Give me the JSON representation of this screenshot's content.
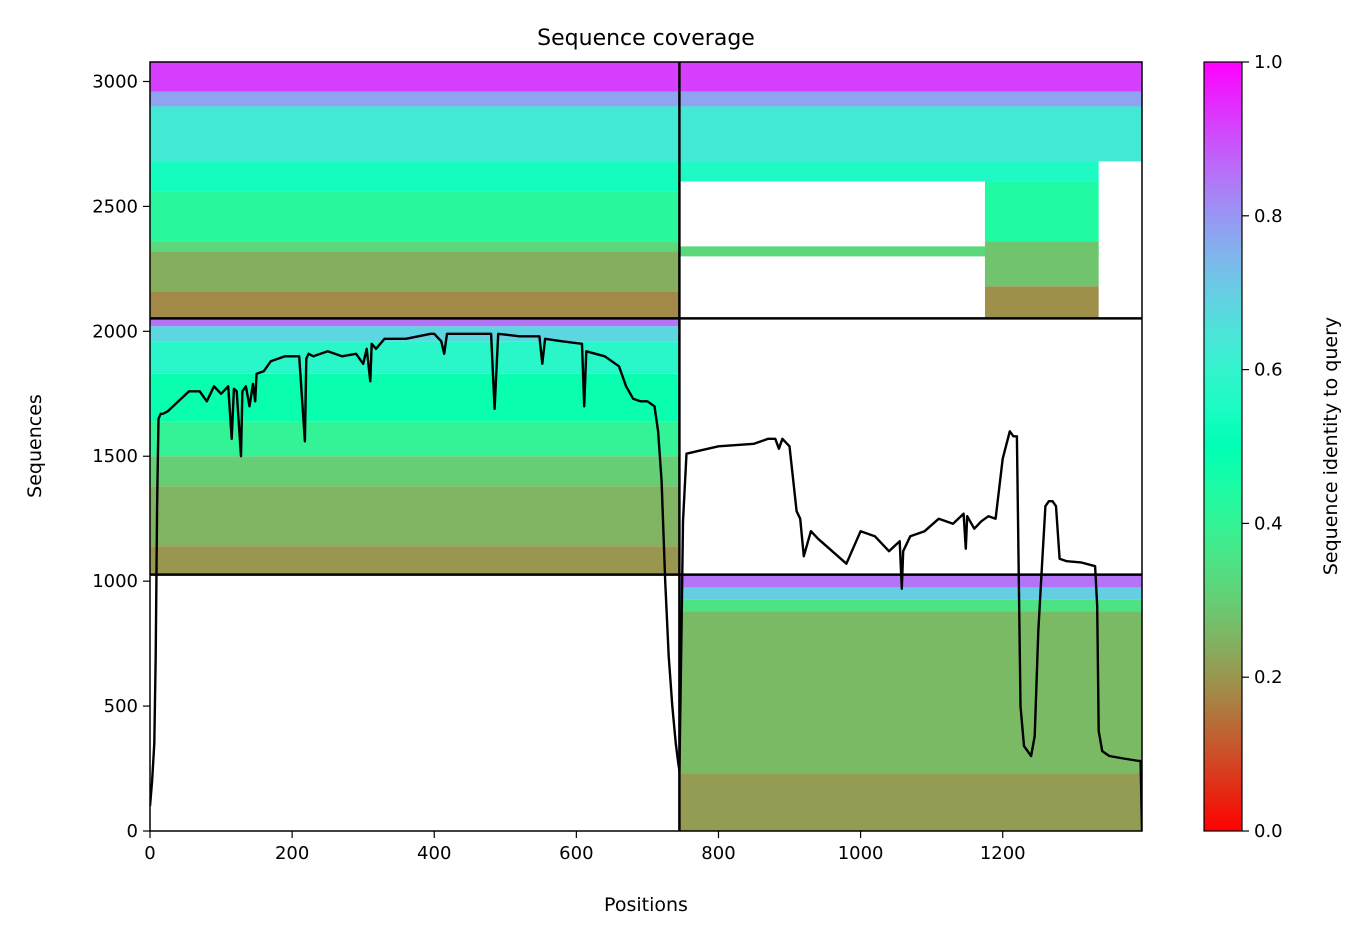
{
  "chart_data": {
    "type": "heatmap",
    "title": "Sequence coverage",
    "xlabel": "Positions",
    "ylabel": "Sequences",
    "xlim": [
      0,
      1396
    ],
    "ylim": [
      0,
      3078
    ],
    "x_ticks": [
      0,
      200,
      400,
      600,
      800,
      1000,
      1200
    ],
    "y_ticks": [
      0,
      500,
      1000,
      1500,
      2000,
      2500,
      3000
    ],
    "colorbar": {
      "label": "Sequence identity to query",
      "range": [
        0.0,
        1.0
      ],
      "ticks": [
        "0.0",
        "0.2",
        "0.4",
        "0.6",
        "0.8",
        "1.0"
      ],
      "colormap": "rainbow_r"
    },
    "chains": [
      {
        "x_range": [
          0,
          745
        ],
        "y_range": [
          1026,
          2052
        ]
      },
      {
        "x_range": [
          745,
          1396
        ],
        "y_range": [
          0,
          1026
        ]
      },
      {
        "x_range": [
          0,
          1396
        ],
        "y_range": [
          2052,
          3078
        ]
      }
    ],
    "block_bands": [
      {
        "x_range": [
          0,
          745
        ],
        "y_range": [
          1026,
          2052
        ],
        "bands": [
          {
            "y0": 2052,
            "y1": 2020,
            "identity": 0.85
          },
          {
            "y0": 2020,
            "y1": 1960,
            "identity": 0.68
          },
          {
            "y0": 1960,
            "y1": 1830,
            "identity": 0.58
          },
          {
            "y0": 1830,
            "y1": 1640,
            "identity": 0.48
          },
          {
            "y0": 1640,
            "y1": 1500,
            "identity": 0.4
          },
          {
            "y0": 1500,
            "y1": 1380,
            "identity": 0.3
          },
          {
            "y0": 1380,
            "y1": 1140,
            "identity": 0.25
          },
          {
            "y0": 1140,
            "y1": 1026,
            "identity": 0.2
          }
        ]
      },
      {
        "x_range": [
          745,
          1396
        ],
        "y_range": [
          0,
          1026
        ],
        "bands": [
          {
            "y0": 1026,
            "y1": 975,
            "identity": 0.85
          },
          {
            "y0": 975,
            "y1": 925,
            "identity": 0.7
          },
          {
            "y0": 925,
            "y1": 880,
            "identity": 0.35
          },
          {
            "y0": 880,
            "y1": 230,
            "identity": 0.26
          },
          {
            "y0": 230,
            "y1": 0,
            "identity": 0.21
          }
        ]
      },
      {
        "x_range": [
          0,
          745
        ],
        "y_range": [
          2052,
          3078
        ],
        "bands": [
          {
            "y0": 3078,
            "y1": 2960,
            "identity": 0.92
          },
          {
            "y0": 2960,
            "y1": 2900,
            "identity": 0.78
          },
          {
            "y0": 2900,
            "y1": 2680,
            "identity": 0.63
          },
          {
            "y0": 2680,
            "y1": 2560,
            "identity": 0.54
          },
          {
            "y0": 2560,
            "y1": 2360,
            "identity": 0.42
          },
          {
            "y0": 2360,
            "y1": 2320,
            "identity": 0.32
          },
          {
            "y0": 2320,
            "y1": 2160,
            "identity": 0.24
          },
          {
            "y0": 2160,
            "y1": 2052,
            "identity": 0.18
          }
        ]
      },
      {
        "x_range": [
          745,
          1396
        ],
        "y_range": [
          2052,
          3078
        ],
        "bands": [
          {
            "y0": 3078,
            "y1": 2960,
            "identity": 0.92
          },
          {
            "y0": 2960,
            "y1": 2900,
            "identity": 0.78
          },
          {
            "y0": 2900,
            "y1": 2680,
            "identity": 0.63
          }
        ]
      },
      {
        "x_range": [
          745,
          1335
        ],
        "y_range": [
          2052,
          2680
        ],
        "bands": [
          {
            "y0": 2680,
            "y1": 2600,
            "identity": 0.56
          },
          {
            "y0": 2340,
            "y1": 2300,
            "identity": 0.32
          }
        ]
      },
      {
        "x_range": [
          1175,
          1335
        ],
        "y_range": [
          2052,
          2680
        ],
        "bands": [
          {
            "y0": 2600,
            "y1": 2360,
            "identity": 0.44
          },
          {
            "y0": 2360,
            "y1": 2180,
            "identity": 0.28
          },
          {
            "y0": 2180,
            "y1": 2052,
            "identity": 0.19
          }
        ]
      }
    ],
    "block_lines": {
      "x": [
        745
      ],
      "y": [
        1026,
        2052
      ]
    },
    "coverage_line": {
      "x": [
        0,
        3,
        6,
        8,
        10,
        12,
        15,
        18,
        25,
        40,
        55,
        70,
        80,
        90,
        100,
        110,
        115,
        118,
        122,
        128,
        130,
        135,
        140,
        145,
        148,
        150,
        160,
        170,
        190,
        210,
        218,
        220,
        223,
        230,
        250,
        270,
        290,
        300,
        305,
        310,
        312,
        318,
        330,
        360,
        395,
        400,
        410,
        414,
        418,
        440,
        480,
        485,
        490,
        520,
        548,
        552,
        556,
        580,
        608,
        611,
        614,
        640,
        660,
        670,
        680,
        690,
        700,
        710,
        715,
        720,
        725,
        730,
        735,
        740,
        743,
        745,
        748,
        750,
        755,
        770,
        800,
        850,
        870,
        880,
        885,
        890,
        900,
        910,
        915,
        920,
        930,
        940,
        960,
        980,
        1000,
        1020,
        1040,
        1055,
        1058,
        1060,
        1070,
        1090,
        1110,
        1130,
        1145,
        1148,
        1150,
        1160,
        1170,
        1180,
        1190,
        1200,
        1210,
        1215,
        1220,
        1225,
        1230,
        1240,
        1245,
        1250,
        1255,
        1260,
        1265,
        1270,
        1275,
        1280,
        1290,
        1310,
        1330,
        1333,
        1335,
        1340,
        1350,
        1370,
        1392,
        1394,
        1396
      ],
      "y": [
        100,
        200,
        350,
        700,
        1300,
        1650,
        1670,
        1670,
        1680,
        1720,
        1760,
        1760,
        1720,
        1780,
        1750,
        1780,
        1570,
        1770,
        1760,
        1500,
        1760,
        1780,
        1700,
        1790,
        1720,
        1830,
        1840,
        1880,
        1900,
        1900,
        1560,
        1890,
        1910,
        1900,
        1920,
        1900,
        1910,
        1870,
        1930,
        1800,
        1950,
        1930,
        1970,
        1970,
        1990,
        1990,
        1960,
        1910,
        1990,
        1990,
        1990,
        1690,
        1990,
        1980,
        1980,
        1870,
        1970,
        1960,
        1950,
        1700,
        1920,
        1900,
        1860,
        1780,
        1730,
        1720,
        1720,
        1700,
        1600,
        1400,
        1000,
        700,
        500,
        350,
        280,
        240,
        800,
        1240,
        1510,
        1520,
        1540,
        1550,
        1570,
        1570,
        1530,
        1570,
        1540,
        1280,
        1250,
        1100,
        1200,
        1170,
        1120,
        1070,
        1200,
        1180,
        1120,
        1160,
        970,
        1120,
        1180,
        1200,
        1250,
        1230,
        1270,
        1130,
        1260,
        1210,
        1240,
        1260,
        1250,
        1490,
        1600,
        1580,
        1580,
        500,
        340,
        300,
        380,
        800,
        1050,
        1300,
        1320,
        1320,
        1300,
        1090,
        1080,
        1075,
        1060,
        900,
        400,
        320,
        300,
        290,
        280,
        280,
        0
      ]
    }
  }
}
